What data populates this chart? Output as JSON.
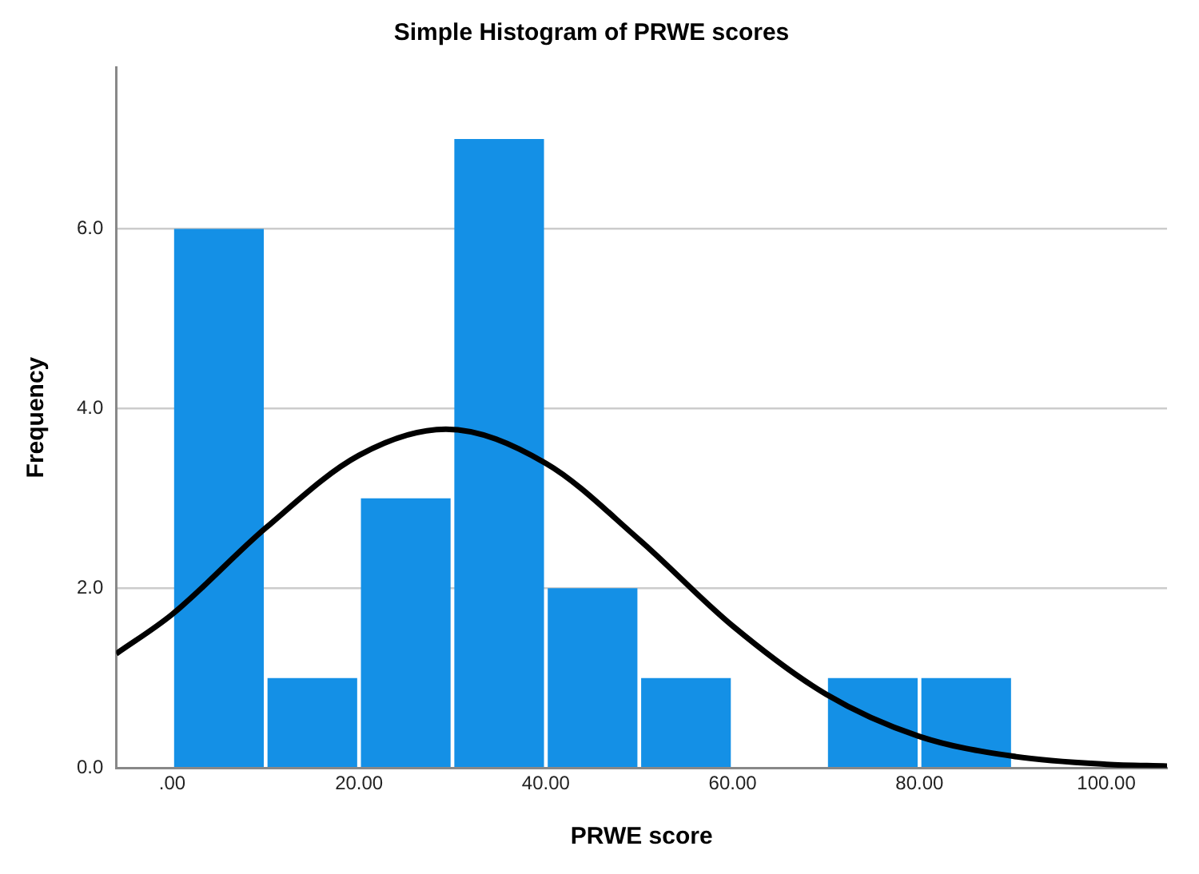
{
  "chart_data": {
    "type": "histogram",
    "title": "Simple Histogram of PRWE scores",
    "xlabel": "PRWE score",
    "ylabel": "Frequency",
    "bins": [
      0,
      10,
      20,
      30,
      40,
      50,
      60,
      70,
      80,
      90
    ],
    "series": [
      {
        "color": "#1490e6",
        "values": [
          6,
          1,
          3,
          7,
          2,
          1,
          0,
          1,
          1
        ]
      },
      {
        "type": "line",
        "color": "#000000",
        "x": [
          -6,
          0,
          10,
          20,
          29.3,
          40,
          50,
          60,
          70,
          80,
          90,
          100,
          106.5
        ],
        "values": [
          1.27,
          1.71,
          2.67,
          3.48,
          3.77,
          3.39,
          2.54,
          1.58,
          0.82,
          0.35,
          0.13,
          0.04,
          0.02
        ]
      }
    ],
    "xlim": [
      -6,
      106.5
    ],
    "xticks": [
      {
        "value": 0,
        "label": ".00"
      },
      {
        "value": 20,
        "label": "20.00"
      },
      {
        "value": 40,
        "label": "40.00"
      },
      {
        "value": 60,
        "label": "60.00"
      },
      {
        "value": 80,
        "label": "80.00"
      },
      {
        "value": 100,
        "label": "100.00"
      }
    ],
    "ylim": [
      0,
      7.8
    ],
    "yticks": [
      {
        "value": 0,
        "label": "0.0"
      },
      {
        "value": 2,
        "label": "2.0"
      },
      {
        "value": 4,
        "label": "4.0"
      },
      {
        "value": 6,
        "label": "6.0"
      }
    ],
    "grid": "y",
    "legend": false,
    "marker": "none",
    "line_style": "solid"
  }
}
